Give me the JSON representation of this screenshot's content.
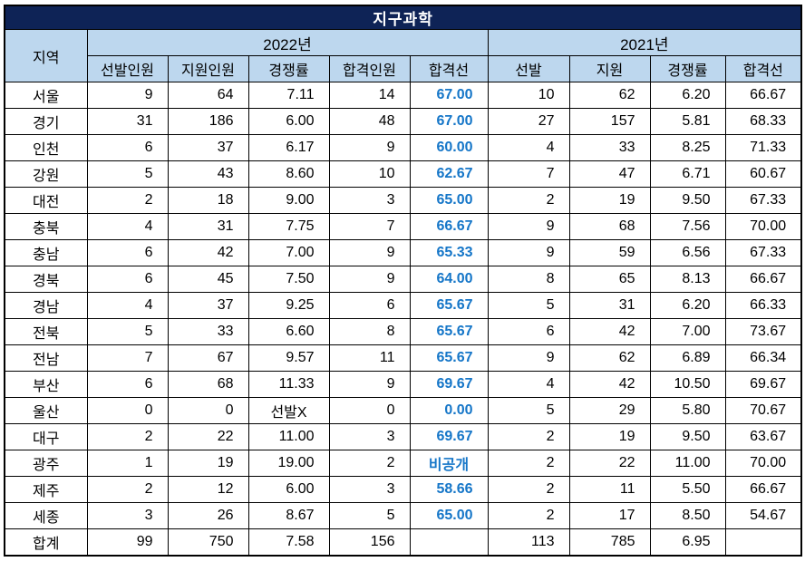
{
  "title": "지구과학",
  "colors": {
    "title_bg": "#0e2356",
    "title_text": "#ffffff",
    "header_bg": "#bdd7ee",
    "cutoff_text": "#1576c8",
    "grid_line": "#000000"
  },
  "table": {
    "region_header": "지역",
    "groups": [
      {
        "label": "2022년",
        "columns": [
          "선발인원",
          "지원인원",
          "경쟁률",
          "합격인원",
          "합격선"
        ]
      },
      {
        "label": "2021년",
        "columns": [
          "선발",
          "지원",
          "경쟁률",
          "합격선"
        ]
      }
    ],
    "rows": [
      {
        "region": "서울",
        "cells": [
          "9",
          "64",
          "7.11",
          "14",
          "67.00",
          "10",
          "62",
          "6.20",
          "66.67"
        ]
      },
      {
        "region": "경기",
        "cells": [
          "31",
          "186",
          "6.00",
          "48",
          "67.00",
          "27",
          "157",
          "5.81",
          "68.33"
        ]
      },
      {
        "region": "인천",
        "cells": [
          "6",
          "37",
          "6.17",
          "9",
          "60.00",
          "4",
          "33",
          "8.25",
          "71.33"
        ]
      },
      {
        "region": "강원",
        "cells": [
          "5",
          "43",
          "8.60",
          "10",
          "62.67",
          "7",
          "47",
          "6.71",
          "60.67"
        ]
      },
      {
        "region": "대전",
        "cells": [
          "2",
          "18",
          "9.00",
          "3",
          "65.00",
          "2",
          "19",
          "9.50",
          "67.33"
        ]
      },
      {
        "region": "충북",
        "cells": [
          "4",
          "31",
          "7.75",
          "7",
          "66.67",
          "9",
          "68",
          "7.56",
          "70.00"
        ]
      },
      {
        "region": "충남",
        "cells": [
          "6",
          "42",
          "7.00",
          "9",
          "65.33",
          "9",
          "59",
          "6.56",
          "67.33"
        ]
      },
      {
        "region": "경북",
        "cells": [
          "6",
          "45",
          "7.50",
          "9",
          "64.00",
          "8",
          "65",
          "8.13",
          "66.67"
        ]
      },
      {
        "region": "경남",
        "cells": [
          "4",
          "37",
          "9.25",
          "6",
          "65.67",
          "5",
          "31",
          "6.20",
          "66.33"
        ]
      },
      {
        "region": "전북",
        "cells": [
          "5",
          "33",
          "6.60",
          "8",
          "65.67",
          "6",
          "42",
          "7.00",
          "73.67"
        ]
      },
      {
        "region": "전남",
        "cells": [
          "7",
          "67",
          "9.57",
          "11",
          "65.67",
          "9",
          "62",
          "6.89",
          "66.34"
        ]
      },
      {
        "region": "부산",
        "cells": [
          "6",
          "68",
          "11.33",
          "9",
          "69.67",
          "4",
          "42",
          "10.50",
          "69.67"
        ]
      },
      {
        "region": "울산",
        "cells": [
          "0",
          "0",
          "선발X",
          "0",
          "0.00",
          "5",
          "29",
          "5.80",
          "70.67"
        ]
      },
      {
        "region": "대구",
        "cells": [
          "2",
          "22",
          "11.00",
          "3",
          "69.67",
          "2",
          "19",
          "9.50",
          "63.67"
        ]
      },
      {
        "region": "광주",
        "cells": [
          "1",
          "19",
          "19.00",
          "2",
          "비공개",
          "2",
          "22",
          "11.00",
          "70.00"
        ]
      },
      {
        "region": "제주",
        "cells": [
          "2",
          "12",
          "6.00",
          "3",
          "58.66",
          "2",
          "11",
          "5.50",
          "66.67"
        ]
      },
      {
        "region": "세종",
        "cells": [
          "3",
          "26",
          "8.67",
          "5",
          "65.00",
          "2",
          "17",
          "8.50",
          "54.67"
        ]
      },
      {
        "region": "합계",
        "cells": [
          "99",
          "750",
          "7.58",
          "156",
          "",
          "113",
          "785",
          "6.95",
          ""
        ]
      }
    ]
  }
}
